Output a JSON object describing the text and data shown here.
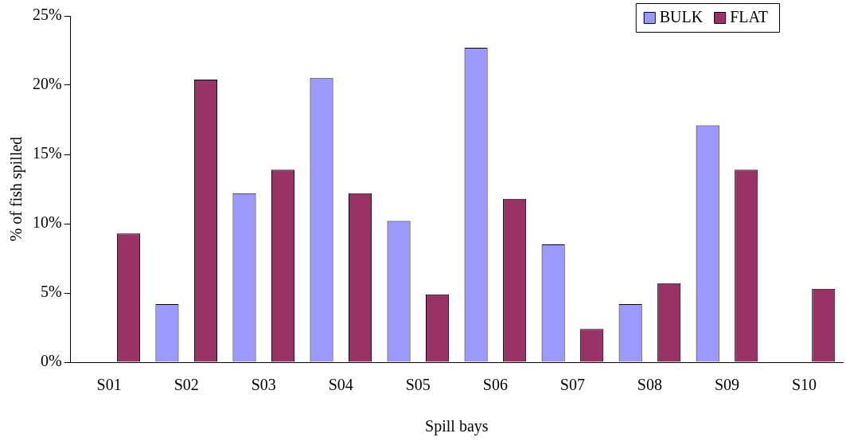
{
  "chart_data": {
    "type": "bar",
    "xlabel": "Spill bays",
    "ylabel": "% of fish spilled",
    "categories": [
      "S01",
      "S02",
      "S03",
      "S04",
      "S05",
      "S06",
      "S07",
      "S08",
      "S09",
      "S10"
    ],
    "series": [
      {
        "name": "BULK",
        "color": "#9999ff",
        "values": [
          0,
          4.2,
          12.2,
          20.5,
          10.2,
          22.7,
          8.5,
          4.2,
          17.1,
          0
        ]
      },
      {
        "name": "FLAT",
        "color": "#993366",
        "values": [
          9.3,
          20.4,
          13.9,
          12.2,
          4.9,
          11.8,
          2.4,
          5.7,
          13.9,
          5.3
        ]
      }
    ],
    "ylim": [
      0,
      25
    ],
    "yticks": [
      {
        "value": 0,
        "label": "0%"
      },
      {
        "value": 5,
        "label": "5%"
      },
      {
        "value": 10,
        "label": "10%"
      },
      {
        "value": 15,
        "label": "15%"
      },
      {
        "value": 20,
        "label": "20%"
      },
      {
        "value": 25,
        "label": "25%"
      }
    ],
    "grid": false,
    "legend": "top right"
  }
}
